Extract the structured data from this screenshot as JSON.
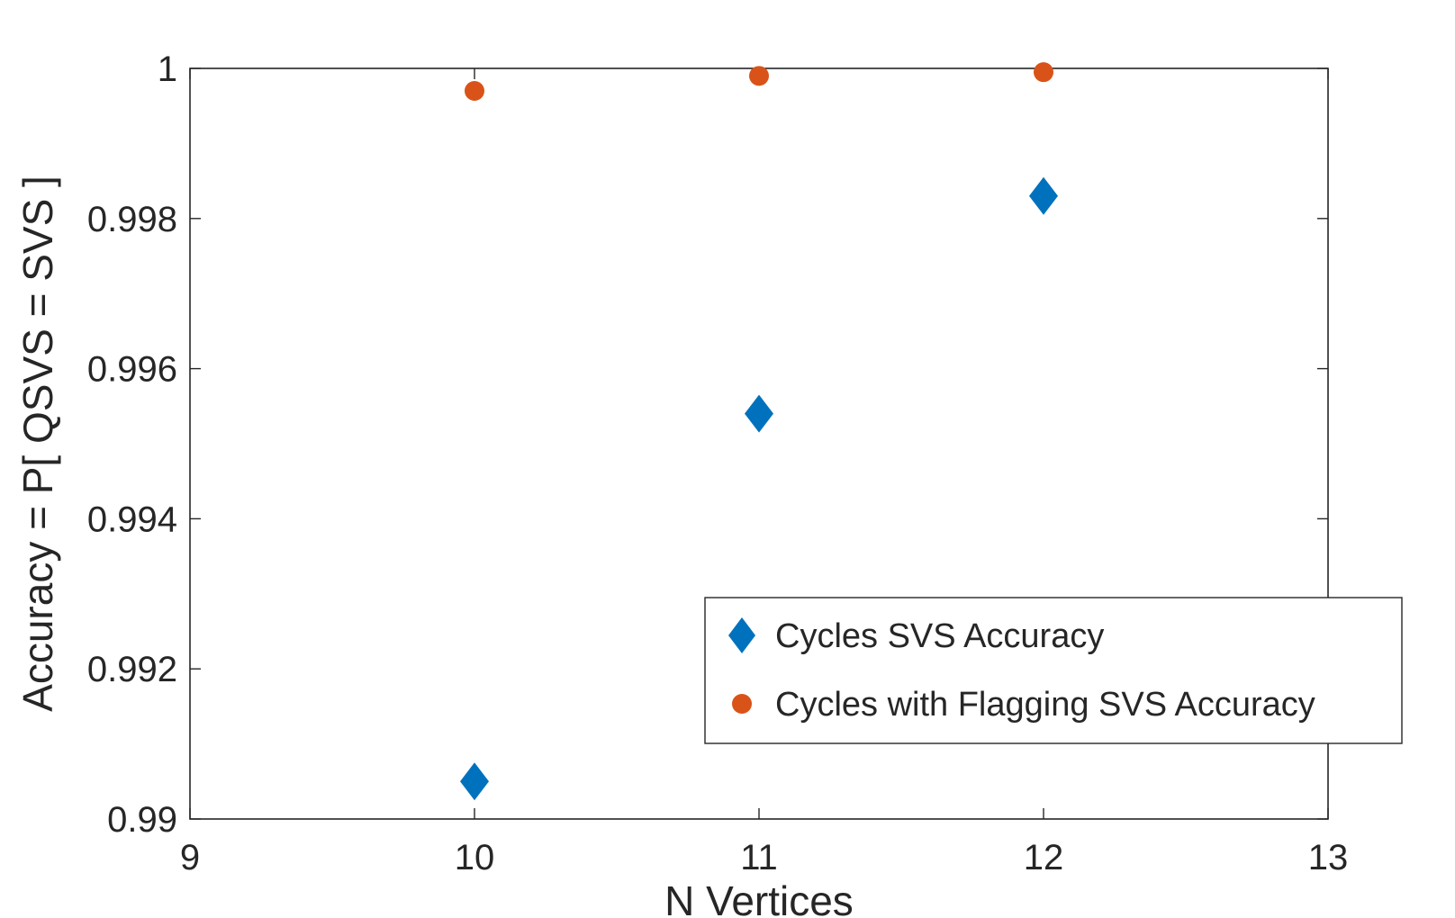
{
  "chart_data": {
    "type": "scatter",
    "title": "",
    "xlabel": "N Vertices",
    "ylabel": "Accuracy  =  P[ QSVS = SVS ]",
    "xlim": [
      9,
      13
    ],
    "ylim": [
      0.99,
      1
    ],
    "xticks": [
      9,
      10,
      11,
      12,
      13
    ],
    "xtick_labels": [
      "9",
      "10",
      "11",
      "12",
      "13"
    ],
    "yticks": [
      0.99,
      0.992,
      0.994,
      0.996,
      0.998,
      1
    ],
    "ytick_labels": [
      "0.99",
      "0.992",
      "0.994",
      "0.996",
      "0.998",
      "1"
    ],
    "grid": false,
    "legend_position": "lower-right",
    "series": [
      {
        "name": "Cycles SVS Accuracy",
        "marker": "diamond",
        "color": "#0072BD",
        "x": [
          10,
          11,
          12
        ],
        "y": [
          0.9905,
          0.9954,
          0.9983
        ]
      },
      {
        "name": "Cycles with Flagging SVS Accuracy",
        "marker": "circle",
        "color": "#D95319",
        "x": [
          10,
          11,
          12
        ],
        "y": [
          0.9997,
          0.9999,
          0.99995
        ]
      }
    ]
  }
}
